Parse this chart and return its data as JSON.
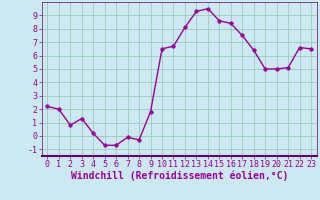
{
  "x": [
    0,
    1,
    2,
    3,
    4,
    5,
    6,
    7,
    8,
    9,
    10,
    11,
    12,
    13,
    14,
    15,
    16,
    17,
    18,
    19,
    20,
    21,
    22,
    23
  ],
  "y": [
    2.2,
    2.0,
    0.8,
    1.3,
    0.2,
    -0.7,
    -0.7,
    -0.1,
    -0.3,
    1.8,
    6.5,
    6.7,
    8.1,
    9.3,
    9.5,
    8.6,
    8.4,
    7.5,
    6.4,
    5.0,
    5.0,
    5.1,
    6.6,
    6.5
  ],
  "xlim": [
    -0.5,
    23.5
  ],
  "ylim": [
    -1.5,
    10.0
  ],
  "yticks": [
    -1,
    0,
    1,
    2,
    3,
    4,
    5,
    6,
    7,
    8,
    9
  ],
  "xticks": [
    0,
    1,
    2,
    3,
    4,
    5,
    6,
    7,
    8,
    9,
    10,
    11,
    12,
    13,
    14,
    15,
    16,
    17,
    18,
    19,
    20,
    21,
    22,
    23
  ],
  "line_color": "#990099",
  "background_color": "#cce8f0",
  "grid_color": "#99ccbb",
  "border_color": "#660066",
  "xlabel": "Windchill (Refroidissement éolien,°C)",
  "xlabel_fontsize": 7,
  "tick_fontsize": 6,
  "line_width": 1.0,
  "marker_size": 2.5
}
